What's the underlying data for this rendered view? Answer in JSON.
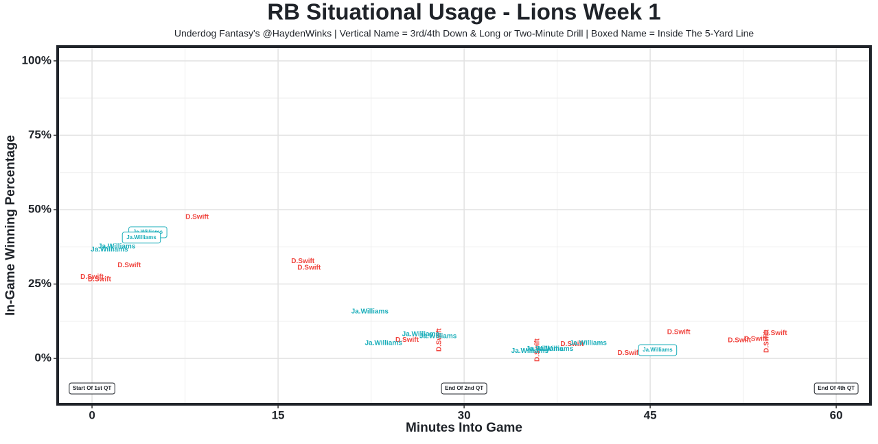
{
  "chart_data": {
    "type": "scatter",
    "title": "RB Situational Usage - Lions Week 1",
    "subtitle": "Underdog Fantasy's @HaydenWinks | Vertical Name = 3rd/4th Down & Long or Two-Minute Drill | Boxed Name = Inside The 5-Yard Line",
    "x_label": "Minutes Into Game",
    "y_label": "In-Game Winning Percentage",
    "xlim": [
      -2.77,
      62.76
    ],
    "ylim": [
      -15.4,
      104.8
    ],
    "xticks": [
      0,
      15,
      30,
      45,
      60
    ],
    "yticks": [
      {
        "value": 0,
        "label": "0%"
      },
      {
        "value": 25,
        "label": "25%"
      },
      {
        "value": 50,
        "label": "50%"
      },
      {
        "value": 75,
        "label": "75%"
      },
      {
        "value": 100,
        "label": "100%"
      }
    ],
    "grid": true,
    "series": [
      {
        "name": "D.Swift",
        "color": "#f0453f",
        "x": [
          8.47,
          3.0,
          0,
          0.6,
          17.0,
          17.5,
          25.4,
          28,
          35.9,
          38.7,
          43.3,
          47.3,
          52.2,
          53.5,
          55.1,
          54.4
        ],
        "y": [
          47.5,
          31.3,
          27.4,
          26.5,
          32.7,
          30.4,
          6.2,
          6.2,
          2.8,
          4.8,
          1.8,
          8.8,
          6.0,
          6.5,
          8.5,
          5.8
        ],
        "vertical": [
          false,
          false,
          false,
          false,
          false,
          false,
          false,
          true,
          true,
          false,
          false,
          false,
          false,
          false,
          false,
          true
        ],
        "boxed": [
          false,
          false,
          false,
          false,
          false,
          false,
          false,
          false,
          false,
          false,
          false,
          false,
          false,
          false,
          false,
          false
        ]
      },
      {
        "name": "Ja.Williams",
        "color": "#1aaeba",
        "x": [
          4.5,
          3.98,
          2.0,
          1.4,
          22.4,
          23.5,
          26.5,
          27.9,
          35.3,
          36.5,
          37.3,
          40.0,
          45.6
        ],
        "y": [
          42.4,
          40.6,
          37.6,
          36.6,
          15.7,
          5.1,
          8.1,
          7.4,
          2.5,
          3.2,
          3.2,
          5.1,
          2.8
        ],
        "vertical": [
          false,
          false,
          false,
          false,
          false,
          false,
          false,
          false,
          false,
          false,
          false,
          false,
          false
        ],
        "boxed": [
          true,
          true,
          false,
          false,
          false,
          false,
          false,
          false,
          false,
          false,
          false,
          false,
          true
        ]
      }
    ],
    "annotations": [
      {
        "text": "Start Of 1st QT",
        "x": 0,
        "y": -10.1
      },
      {
        "text": "End Of 2nd QT",
        "x": 30,
        "y": -10.1
      },
      {
        "text": "End Of 4th QT",
        "x": 60,
        "y": -10.1
      }
    ]
  }
}
